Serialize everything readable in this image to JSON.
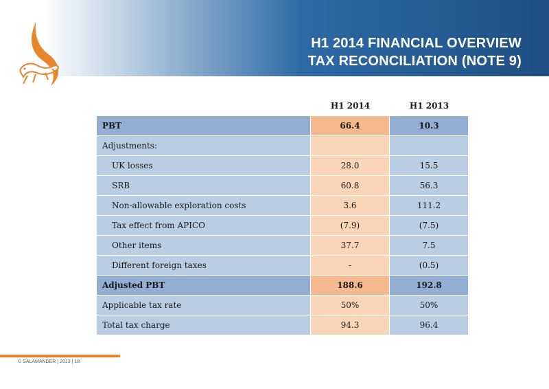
{
  "header": {
    "title_line1": "H1 2014 FINANCIAL OVERVIEW",
    "title_line2": "TAX RECONCILIATION (NOTE 9)"
  },
  "table": {
    "columns": [
      "H1 2014",
      "H1 2013"
    ],
    "rows": [
      {
        "label": "PBT",
        "h1_2014": "66.4",
        "h1_2013": "10.3"
      },
      {
        "label": "Adjustments:",
        "h1_2014": "",
        "h1_2013": ""
      },
      {
        "label": "UK losses",
        "h1_2014": "28.0",
        "h1_2013": "15.5"
      },
      {
        "label": "SRB",
        "h1_2014": "60.8",
        "h1_2013": "56.3"
      },
      {
        "label": "Non-allowable exploration costs",
        "h1_2014": "3.6",
        "h1_2013": "111.2"
      },
      {
        "label": "Tax effect from APICO",
        "h1_2014": "(7.9)",
        "h1_2013": "(7.5)"
      },
      {
        "label": "Other items",
        "h1_2014": "37.7",
        "h1_2013": "7.5"
      },
      {
        "label": "Different foreign taxes",
        "h1_2014": "-",
        "h1_2013": "(0.5)"
      },
      {
        "label": "Adjusted PBT",
        "h1_2014": "188.6",
        "h1_2013": "192.8"
      },
      {
        "label": "Applicable tax rate",
        "h1_2014": "50%",
        "h1_2013": "50%"
      },
      {
        "label": "Total tax charge",
        "h1_2014": "94.3",
        "h1_2013": "96.4"
      }
    ]
  },
  "footer": {
    "text": "© SALAMANDER  |  2013  |    18"
  },
  "colors": {
    "header_blue": "#2d6aa6",
    "row_blue_light": "#b9cde3",
    "row_blue_dark": "#92afd3",
    "row_orange_light": "#f9d5b8",
    "row_orange_dark": "#f4b98f",
    "accent_orange": "#e8862b"
  },
  "icons": {
    "logo": "salamander-logo-icon"
  }
}
